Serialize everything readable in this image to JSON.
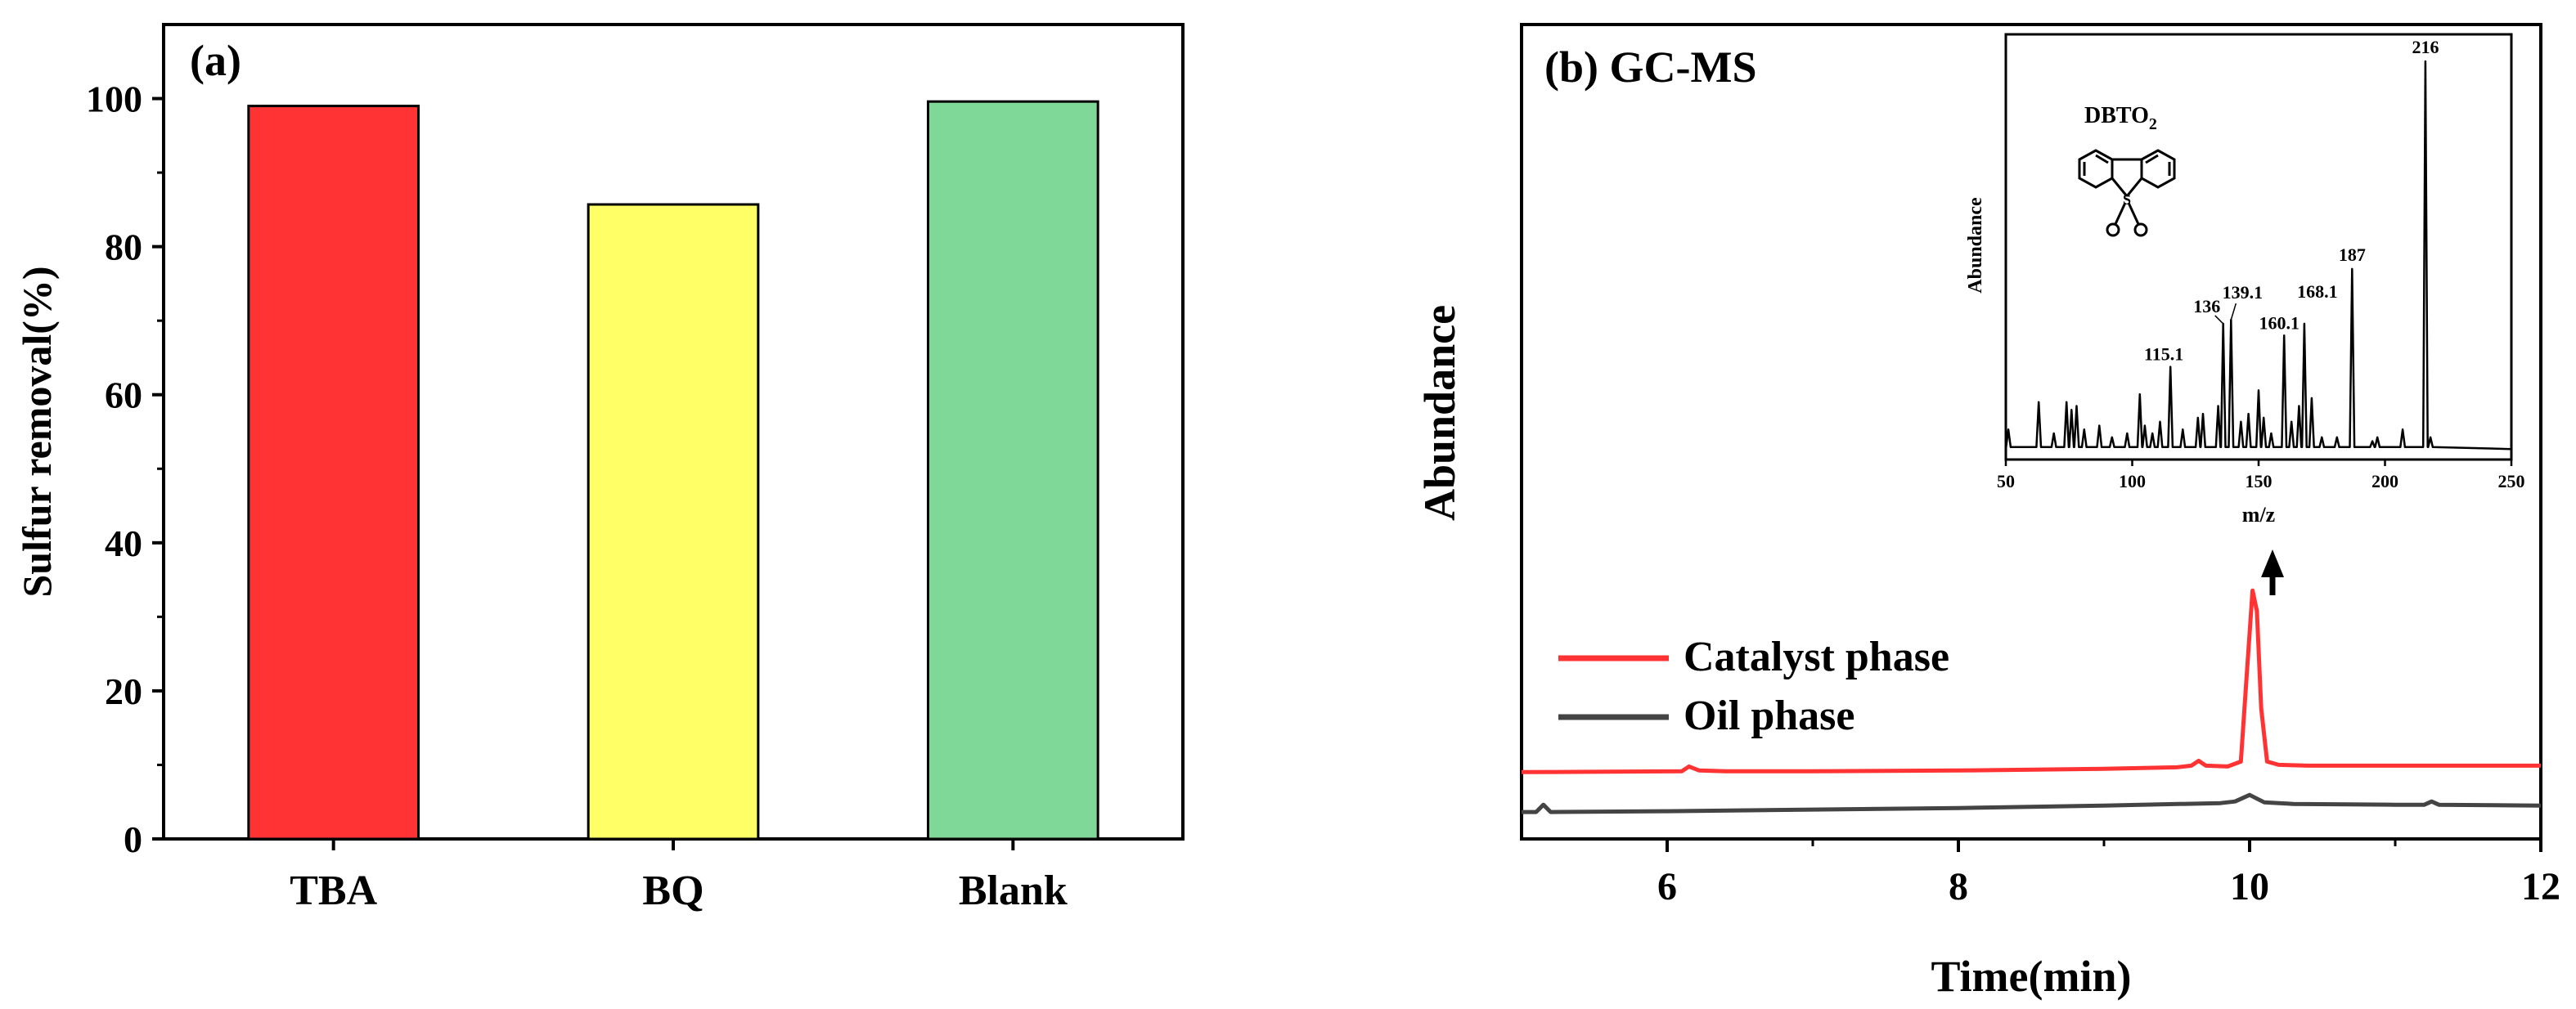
{
  "chart_data": [
    {
      "type": "bar",
      "panel_label": "(a)",
      "title": "",
      "xlabel": "",
      "ylabel": "Sulfur removal(%)",
      "ylim": [
        0,
        110
      ],
      "yticks": [
        0,
        20,
        40,
        60,
        80,
        100
      ],
      "categories": [
        "TBA",
        "BQ",
        "Blank"
      ],
      "values": [
        99.0,
        85.7,
        99.6
      ],
      "colors": [
        "#ff3333",
        "#ffff66",
        "#80d898"
      ],
      "grid": false
    },
    {
      "type": "line",
      "panel_label": "(b) GC-MS",
      "title": "",
      "xlabel": "Time(min)",
      "ylabel": "Abundance",
      "xlim": [
        5,
        12
      ],
      "xticks": [
        6,
        8,
        10,
        12
      ],
      "ylim": [
        0,
        100
      ],
      "legend_position": "center-left",
      "grid": false,
      "series": [
        {
          "name": "Catalyst phase",
          "color": "#ff3333",
          "x": [
            5.0,
            6.1,
            6.15,
            6.22,
            6.4,
            7.0,
            8.0,
            9.0,
            9.5,
            9.6,
            9.65,
            9.7,
            9.85,
            9.94,
            9.98,
            10.02,
            10.05,
            10.08,
            10.12,
            10.2,
            10.4,
            11.0,
            12.0
          ],
          "y": [
            8.2,
            8.3,
            8.9,
            8.4,
            8.3,
            8.3,
            8.4,
            8.6,
            8.8,
            9.0,
            9.6,
            9.0,
            8.9,
            9.5,
            20.0,
            30.5,
            28.0,
            16.0,
            9.5,
            9.1,
            9.0,
            9.0,
            9.0
          ]
        },
        {
          "name": "Oil phase",
          "color": "#444444",
          "x": [
            5.0,
            5.1,
            5.15,
            5.2,
            6.0,
            7.0,
            8.0,
            9.0,
            9.8,
            9.9,
            10.0,
            10.1,
            10.3,
            11.0,
            11.2,
            11.25,
            11.3,
            12.0
          ],
          "y": [
            3.3,
            3.3,
            4.2,
            3.3,
            3.4,
            3.6,
            3.8,
            4.1,
            4.4,
            4.6,
            5.4,
            4.5,
            4.3,
            4.2,
            4.2,
            4.6,
            4.2,
            4.1
          ]
        }
      ],
      "annotation": "arrow above the 10 min peak pointing to inset"
    },
    {
      "type": "line",
      "role": "inset mass spectrum",
      "title": "",
      "compound_label": "DBTO2",
      "compound_label_base": "DBTO",
      "compound_label_sub": "2",
      "xlabel": "m/z",
      "ylabel": "Abundance",
      "xlim": [
        50,
        250
      ],
      "xticks": [
        50,
        100,
        150,
        200,
        250
      ],
      "ylim": [
        0,
        100
      ],
      "peak_labels": [
        {
          "label": "115.1",
          "mz": 115.1,
          "y": 22
        },
        {
          "label": "136",
          "mz": 136,
          "y": 33
        },
        {
          "label": "139.1",
          "mz": 139.1,
          "y": 34
        },
        {
          "label": "160.1",
          "mz": 160.1,
          "y": 30
        },
        {
          "label": "168.1",
          "mz": 168.1,
          "y": 33
        },
        {
          "label": "187",
          "mz": 187,
          "y": 47
        },
        {
          "label": "216",
          "mz": 216,
          "y": 100
        }
      ],
      "peaks": [
        [
          51,
          6
        ],
        [
          63,
          13
        ],
        [
          69,
          5
        ],
        [
          74,
          13
        ],
        [
          76,
          11
        ],
        [
          78,
          12
        ],
        [
          81,
          6
        ],
        [
          87,
          7
        ],
        [
          92,
          4
        ],
        [
          98,
          5
        ],
        [
          103,
          15
        ],
        [
          105,
          7
        ],
        [
          108,
          5
        ],
        [
          111,
          8
        ],
        [
          115.1,
          22
        ],
        [
          120,
          6
        ],
        [
          126,
          9
        ],
        [
          128,
          10
        ],
        [
          134,
          12
        ],
        [
          136,
          33
        ],
        [
          139.1,
          34
        ],
        [
          143,
          8
        ],
        [
          146,
          10
        ],
        [
          150,
          16
        ],
        [
          152,
          9
        ],
        [
          155,
          5
        ],
        [
          160.1,
          30
        ],
        [
          163,
          8
        ],
        [
          166,
          12
        ],
        [
          168.1,
          33
        ],
        [
          171,
          14
        ],
        [
          175,
          4
        ],
        [
          181,
          4
        ],
        [
          187,
          47
        ],
        [
          195,
          3
        ],
        [
          197,
          4
        ],
        [
          207,
          6
        ],
        [
          216,
          100
        ],
        [
          218,
          4
        ]
      ]
    }
  ]
}
